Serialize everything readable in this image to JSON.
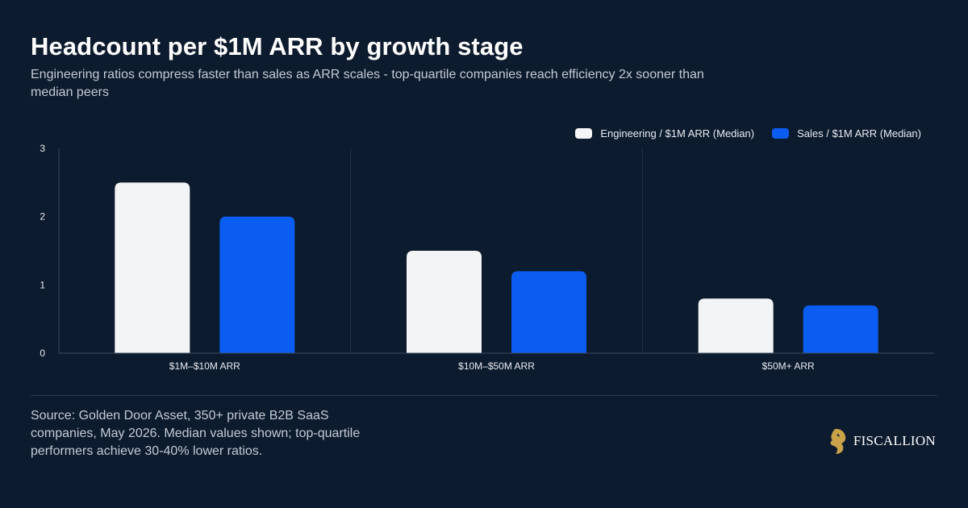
{
  "header": {
    "title": "Headcount per $1M ARR by growth stage",
    "subtitle": "Engineering ratios compress faster than sales as ARR scales - top-quartile companies reach efficiency 2x sooner than median peers"
  },
  "chart_data": {
    "type": "bar",
    "categories": [
      "$1M–$10M ARR",
      "$10M–$50M ARR",
      "$50M+ ARR"
    ],
    "series": [
      {
        "name": "Engineering / $1M ARR (Median)",
        "values": [
          2.5,
          1.5,
          0.8
        ],
        "color": "#f3f4f6"
      },
      {
        "name": "Sales / $1M ARR (Median)",
        "values": [
          2.0,
          1.2,
          0.7
        ],
        "color": "#0b5cf0"
      }
    ],
    "ylim": [
      0,
      3
    ],
    "yticks": [
      0,
      1,
      2,
      3
    ],
    "legend_position": "top-right",
    "grid": false
  },
  "footer": {
    "source": "Source: Golden Door Asset, 350+ private B2B SaaS companies, May 2026. Median values shown; top-quartile performers achieve 30-40% lower ratios.",
    "brand_name": "FISCALLION",
    "brand_icon": "horse-head-logo",
    "brand_color": "#c9a24a"
  }
}
